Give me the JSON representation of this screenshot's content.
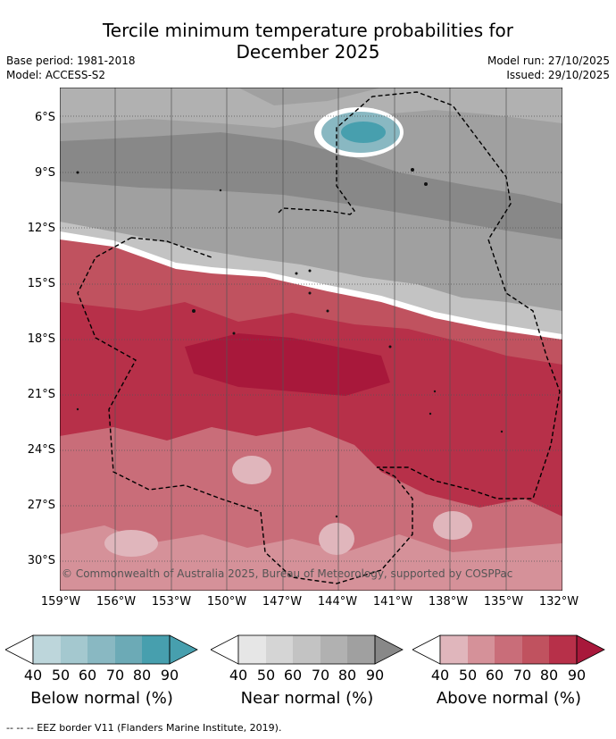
{
  "title_line1": "Tercile minimum temperature probabilities for",
  "title_line2": "December 2025",
  "base_period": "Base period: 1981-2018",
  "model": "Model: ACCESS-S2",
  "model_run": "Model run: 27/10/2025",
  "issued": "Issued: 29/10/2025",
  "copyright": "© Commonwealth of Australia 2025, Bureau of Meteorology, supported by COSPPac",
  "y_ticks": [
    "6°S",
    "9°S",
    "12°S",
    "15°S",
    "18°S",
    "21°S",
    "24°S",
    "27°S",
    "30°S"
  ],
  "x_ticks": [
    "159°W",
    "156°W",
    "153°W",
    "150°W",
    "147°W",
    "144°W",
    "141°W",
    "138°W",
    "135°W",
    "132°W"
  ],
  "colorbars": [
    {
      "label": "Below normal (%)",
      "ticks": [
        "40",
        "50",
        "60",
        "70",
        "80",
        "90"
      ],
      "colors": [
        "#ffffff",
        "#bdd6db",
        "#a4c8cf",
        "#89b8c2",
        "#6caab6",
        "#479fae"
      ]
    },
    {
      "label": "Near normal (%)",
      "ticks": [
        "40",
        "50",
        "60",
        "70",
        "80",
        "90"
      ],
      "colors": [
        "#ffffff",
        "#e6e6e6",
        "#d5d5d5",
        "#c3c3c3",
        "#b1b1b1",
        "#a0a0a0",
        "#888888"
      ]
    },
    {
      "label": "Above normal (%)",
      "ticks": [
        "40",
        "50",
        "60",
        "70",
        "80",
        "90"
      ],
      "colors": [
        "#ffffff",
        "#e0b6bc",
        "#d59199",
        "#c96d79",
        "#c0525f",
        "#b73049",
        "#a8183b"
      ]
    }
  ],
  "footer": "-- -- -- EEZ border V11 (Flanders Marine Institute, 2019)."
}
